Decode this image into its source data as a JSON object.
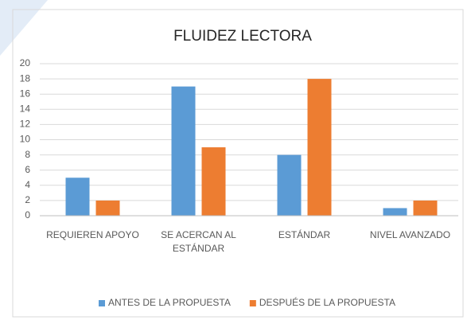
{
  "chart_data": {
    "type": "bar",
    "title": "FLUIDEZ LECTORA",
    "categories": [
      "REQUIEREN APOYO",
      "SE ACERCAN AL ESTÁNDAR",
      "ESTÁNDAR",
      "NIVEL AVANZADO"
    ],
    "series": [
      {
        "name": "ANTES DE LA PROPUESTA",
        "color": "#5b9bd5",
        "values": [
          5,
          17,
          8,
          1
        ]
      },
      {
        "name": "DESPUÉS DE LA PROPUESTA",
        "color": "#ed7d31",
        "values": [
          2,
          9,
          18,
          2
        ]
      }
    ],
    "ylim": [
      0,
      20
    ],
    "yticks": [
      0,
      2,
      4,
      6,
      8,
      10,
      12,
      14,
      16,
      18,
      20
    ],
    "grid": true,
    "legend": "bottom"
  }
}
